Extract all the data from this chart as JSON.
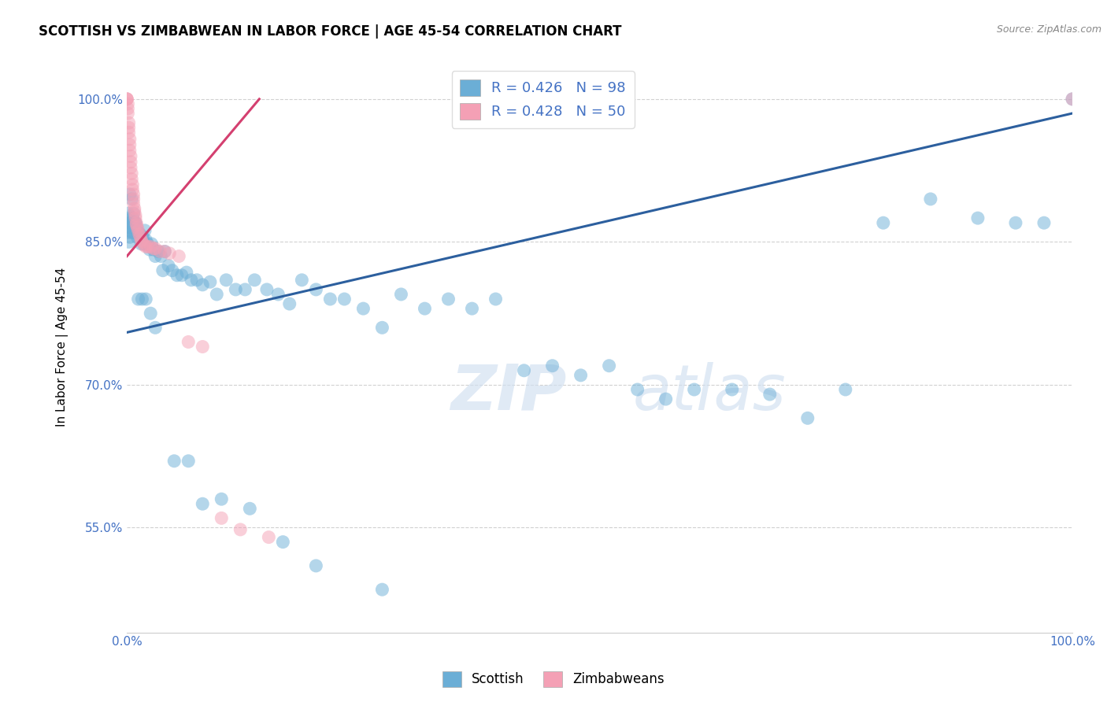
{
  "title": "SCOTTISH VS ZIMBABWEAN IN LABOR FORCE | AGE 45-54 CORRELATION CHART",
  "source_text": "Source: ZipAtlas.com",
  "ylabel": "In Labor Force | Age 45-54",
  "xlim": [
    0.0,
    1.0
  ],
  "ylim": [
    0.44,
    1.04
  ],
  "yticks": [
    0.55,
    0.7,
    0.85,
    1.0
  ],
  "ytick_labels": [
    "55.0%",
    "70.0%",
    "85.0%",
    "100.0%"
  ],
  "xtick_labels": [
    "0.0%",
    "100.0%"
  ],
  "watermark_zip": "ZIP",
  "watermark_atlas": "atlas",
  "legend_blue_label": "R = 0.426   N = 98",
  "legend_pink_label": "R = 0.428   N = 50",
  "blue_color": "#6baed6",
  "pink_color": "#f4a0b5",
  "blue_line_color": "#2c5f9e",
  "pink_line_color": "#d44070",
  "blue_trend_x": [
    0.0,
    1.0
  ],
  "blue_trend_y": [
    0.755,
    0.985
  ],
  "pink_trend_x": [
    0.0,
    0.14
  ],
  "pink_trend_y": [
    0.835,
    1.0
  ],
  "blue_scatter_x": [
    0.001,
    0.001,
    0.002,
    0.002,
    0.003,
    0.003,
    0.004,
    0.004,
    0.005,
    0.005,
    0.006,
    0.006,
    0.007,
    0.007,
    0.008,
    0.009,
    0.01,
    0.011,
    0.012,
    0.013,
    0.014,
    0.015,
    0.016,
    0.017,
    0.018,
    0.019,
    0.02,
    0.022,
    0.024,
    0.026,
    0.028,
    0.03,
    0.033,
    0.036,
    0.04,
    0.044,
    0.048,
    0.053,
    0.058,
    0.063,
    0.068,
    0.074,
    0.08,
    0.088,
    0.095,
    0.105,
    0.115,
    0.125,
    0.135,
    0.148,
    0.16,
    0.172,
    0.185,
    0.2,
    0.215,
    0.23,
    0.25,
    0.27,
    0.29,
    0.315,
    0.34,
    0.365,
    0.39,
    0.42,
    0.45,
    0.48,
    0.51,
    0.54,
    0.57,
    0.6,
    0.64,
    0.68,
    0.72,
    0.76,
    0.8,
    0.85,
    0.9,
    0.94,
    0.97,
    1.0,
    0.003,
    0.005,
    0.007,
    0.009,
    0.012,
    0.016,
    0.02,
    0.025,
    0.03,
    0.038,
    0.05,
    0.065,
    0.08,
    0.1,
    0.13,
    0.165,
    0.2,
    0.27
  ],
  "blue_scatter_y": [
    0.86,
    0.88,
    0.87,
    0.85,
    0.855,
    0.875,
    0.87,
    0.865,
    0.87,
    0.86,
    0.86,
    0.875,
    0.865,
    0.87,
    0.86,
    0.87,
    0.865,
    0.855,
    0.86,
    0.858,
    0.858,
    0.848,
    0.855,
    0.855,
    0.848,
    0.862,
    0.852,
    0.848,
    0.842,
    0.848,
    0.842,
    0.835,
    0.84,
    0.835,
    0.84,
    0.825,
    0.82,
    0.815,
    0.815,
    0.818,
    0.81,
    0.81,
    0.805,
    0.808,
    0.795,
    0.81,
    0.8,
    0.8,
    0.81,
    0.8,
    0.795,
    0.785,
    0.81,
    0.8,
    0.79,
    0.79,
    0.78,
    0.76,
    0.795,
    0.78,
    0.79,
    0.78,
    0.79,
    0.715,
    0.72,
    0.71,
    0.72,
    0.695,
    0.685,
    0.695,
    0.695,
    0.69,
    0.665,
    0.695,
    0.87,
    0.895,
    0.875,
    0.87,
    0.87,
    1.0,
    0.9,
    0.895,
    0.88,
    0.87,
    0.79,
    0.79,
    0.79,
    0.775,
    0.76,
    0.82,
    0.62,
    0.62,
    0.575,
    0.58,
    0.57,
    0.535,
    0.51,
    0.485
  ],
  "pink_scatter_x": [
    0.0,
    0.0,
    0.0,
    0.001,
    0.001,
    0.001,
    0.002,
    0.002,
    0.002,
    0.003,
    0.003,
    0.003,
    0.004,
    0.004,
    0.004,
    0.005,
    0.005,
    0.006,
    0.006,
    0.007,
    0.007,
    0.007,
    0.008,
    0.008,
    0.009,
    0.009,
    0.01,
    0.01,
    0.011,
    0.012,
    0.013,
    0.014,
    0.015,
    0.016,
    0.018,
    0.02,
    0.022,
    0.025,
    0.028,
    0.03,
    0.035,
    0.04,
    0.045,
    0.055,
    0.065,
    0.08,
    0.1,
    0.12,
    0.15,
    1.0
  ],
  "pink_scatter_y": [
    1.0,
    1.0,
    1.0,
    0.995,
    0.99,
    0.985,
    0.975,
    0.97,
    0.965,
    0.958,
    0.952,
    0.946,
    0.94,
    0.934,
    0.928,
    0.922,
    0.916,
    0.91,
    0.905,
    0.9,
    0.895,
    0.89,
    0.885,
    0.882,
    0.878,
    0.875,
    0.87,
    0.868,
    0.865,
    0.862,
    0.858,
    0.856,
    0.852,
    0.85,
    0.847,
    0.845,
    0.845,
    0.845,
    0.843,
    0.843,
    0.84,
    0.84,
    0.838,
    0.835,
    0.745,
    0.74,
    0.56,
    0.548,
    0.54,
    1.0
  ]
}
